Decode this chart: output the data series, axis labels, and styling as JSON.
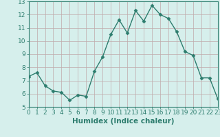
{
  "x": [
    0,
    1,
    2,
    3,
    4,
    5,
    6,
    7,
    8,
    9,
    10,
    11,
    12,
    13,
    14,
    15,
    16,
    17,
    18,
    19,
    20,
    21,
    22,
    23
  ],
  "y": [
    7.3,
    7.6,
    6.6,
    6.2,
    6.1,
    5.5,
    5.9,
    5.8,
    7.7,
    8.8,
    10.5,
    11.6,
    10.6,
    12.3,
    11.5,
    12.7,
    12.0,
    11.7,
    10.7,
    9.2,
    8.9,
    7.2,
    7.2,
    5.6
  ],
  "line_color": "#2d7d6e",
  "marker": "D",
  "marker_size": 2.5,
  "bg_color": "#d6efec",
  "grid_color": "#c0aaaa",
  "xlabel": "Humidex (Indice chaleur)",
  "xlim": [
    0,
    23
  ],
  "ylim": [
    5,
    13
  ],
  "yticks": [
    5,
    6,
    7,
    8,
    9,
    10,
    11,
    12,
    13
  ],
  "xticks": [
    0,
    1,
    2,
    3,
    4,
    5,
    6,
    7,
    8,
    9,
    10,
    11,
    12,
    13,
    14,
    15,
    16,
    17,
    18,
    19,
    20,
    21,
    22,
    23
  ],
  "tick_label_fontsize": 6.5,
  "xlabel_fontsize": 7.5,
  "line_width": 1.0
}
